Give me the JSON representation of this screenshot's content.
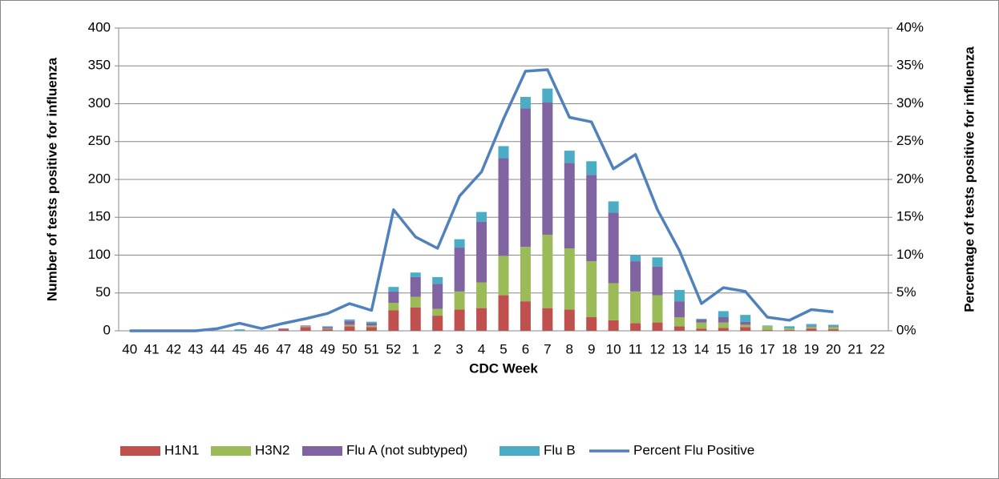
{
  "chart_data": {
    "type": "combo",
    "x_label": "CDC Week",
    "y_label": "Number of tests positive for influenza",
    "y2_label": "Percentage of tests positive for influenza",
    "categories": [
      "40",
      "41",
      "42",
      "43",
      "44",
      "45",
      "46",
      "47",
      "48",
      "49",
      "50",
      "51",
      "52",
      "1",
      "2",
      "3",
      "4",
      "5",
      "6",
      "7",
      "8",
      "9",
      "10",
      "11",
      "12",
      "13",
      "14",
      "15",
      "16",
      "17",
      "18",
      "19",
      "20",
      "21",
      "22"
    ],
    "series": [
      {
        "name": "H1N1",
        "type": "bar",
        "color": "#c0504d",
        "values": [
          0,
          0,
          0,
          0,
          0,
          0,
          0,
          2,
          5,
          2,
          6,
          5,
          27,
          31,
          20,
          28,
          30,
          47,
          39,
          30,
          28,
          18,
          14,
          10,
          11,
          6,
          3,
          4,
          5,
          1,
          1,
          3,
          2,
          0,
          0
        ]
      },
      {
        "name": "H3N2",
        "type": "bar",
        "color": "#9bbb59",
        "values": [
          0,
          0,
          0,
          0,
          0,
          0,
          0,
          0,
          1,
          1,
          2,
          2,
          10,
          14,
          9,
          24,
          34,
          52,
          72,
          97,
          81,
          74,
          49,
          42,
          36,
          12,
          8,
          7,
          3,
          5,
          2,
          2,
          3,
          0,
          0
        ]
      },
      {
        "name": "Flu A (not subtyped)",
        "type": "bar",
        "color": "#8064a2",
        "values": [
          0,
          0,
          0,
          0,
          0,
          0,
          0,
          1,
          1,
          2,
          5,
          3,
          15,
          26,
          33,
          58,
          80,
          129,
          183,
          175,
          113,
          114,
          93,
          40,
          38,
          21,
          4,
          7,
          4,
          0,
          0,
          1,
          1,
          0,
          0
        ]
      },
      {
        "name": "Flu B",
        "type": "bar",
        "color": "#4bacc6",
        "values": [
          0,
          0,
          0,
          0,
          0,
          2,
          0,
          0,
          0,
          1,
          2,
          2,
          6,
          6,
          9,
          11,
          13,
          16,
          15,
          18,
          16,
          18,
          15,
          8,
          12,
          15,
          1,
          8,
          9,
          1,
          3,
          3,
          2,
          0,
          0
        ]
      },
      {
        "name": "Percent Flu Positive",
        "type": "line",
        "axis": "y2",
        "color": "#4f81bd",
        "values": [
          0,
          0,
          0,
          0,
          0.3,
          1.0,
          0.3,
          1.0,
          1.6,
          2.3,
          3.6,
          2.7,
          16.0,
          12.4,
          10.9,
          17.8,
          21.0,
          28.0,
          34.3,
          34.5,
          28.2,
          27.6,
          21.4,
          23.3,
          16.0,
          10.6,
          3.6,
          5.7,
          5.2,
          1.8,
          1.4,
          2.8,
          2.5,
          null,
          null
        ]
      }
    ],
    "ylim": [
      0,
      400
    ],
    "yticks": [
      0,
      50,
      100,
      150,
      200,
      250,
      300,
      350,
      400
    ],
    "y2lim": [
      0,
      40
    ],
    "y2ticks": [
      {
        "value": 0,
        "label": "0%"
      },
      {
        "value": 5,
        "label": "5%"
      },
      {
        "value": 10,
        "label": "10%"
      },
      {
        "value": 15,
        "label": "15%"
      },
      {
        "value": 20,
        "label": "20%"
      },
      {
        "value": 25,
        "label": "25%"
      },
      {
        "value": 30,
        "label": "30%"
      },
      {
        "value": 35,
        "label": "35%"
      },
      {
        "value": 40,
        "label": "40%"
      }
    ],
    "grid": true,
    "legend": "bottom"
  }
}
